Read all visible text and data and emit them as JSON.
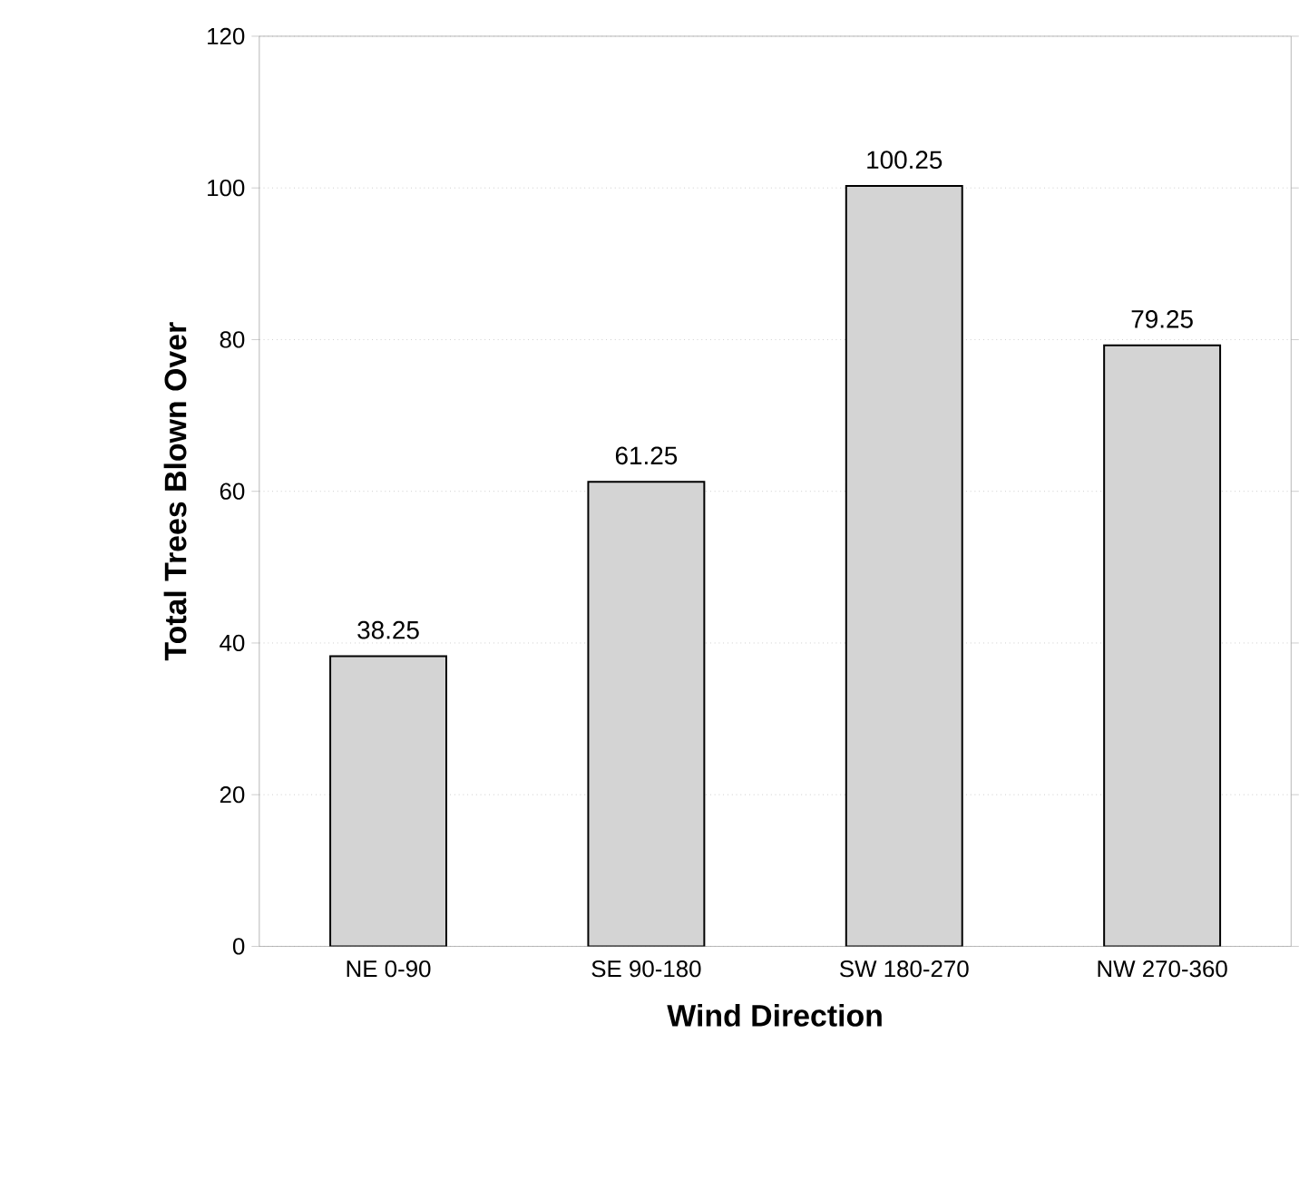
{
  "chart_data": {
    "type": "bar",
    "xlabel": "Wind Direction",
    "ylabel": "Total Trees Blown Over",
    "categories": [
      "NE 0-90",
      "SE 90-180",
      "SW 180-270",
      "NW 270-360"
    ],
    "values": [
      38.25,
      61.25,
      100.25,
      79.25
    ],
    "value_labels": [
      "38.25",
      "61.25",
      "100.25",
      "79.25"
    ],
    "color": "#d4d4d4",
    "ylim": [
      0,
      120
    ],
    "yticks": [
      0,
      20,
      40,
      60,
      80,
      100,
      120
    ],
    "grid": "y"
  }
}
